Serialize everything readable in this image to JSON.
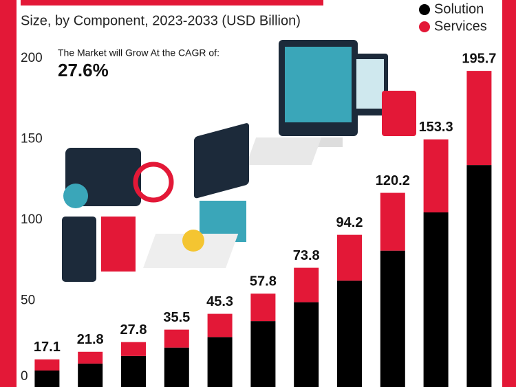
{
  "chart_data": {
    "type": "stacked_bar",
    "subtitle": "Size, by Component, 2023-2033 (USD Billion)",
    "annotation": "The Market will Grow At the CAGR of:",
    "annotation_value": "27.6%",
    "categories": [
      null,
      null,
      null,
      null,
      null,
      null,
      null,
      null,
      null,
      null,
      null
    ],
    "series": [
      {
        "name": "Solution",
        "color": "#000000",
        "values": [
          10.2,
          14.5,
          19.2,
          24.4,
          30.9,
          40.8,
          52.5,
          65.8,
          84.4,
          108.1,
          137.4
        ]
      },
      {
        "name": "Services",
        "color": "#e31837",
        "values": [
          6.9,
          7.3,
          8.6,
          11.1,
          14.4,
          17.0,
          21.3,
          28.4,
          35.8,
          45.2,
          58.3
        ]
      }
    ],
    "totals": [
      17.1,
      21.8,
      27.8,
      35.5,
      45.3,
      57.8,
      73.8,
      94.2,
      120.2,
      153.3,
      195.7
    ],
    "ylim": [
      0,
      200
    ],
    "yticks": [
      0,
      50,
      100,
      150,
      200
    ],
    "legend": "top-right"
  }
}
